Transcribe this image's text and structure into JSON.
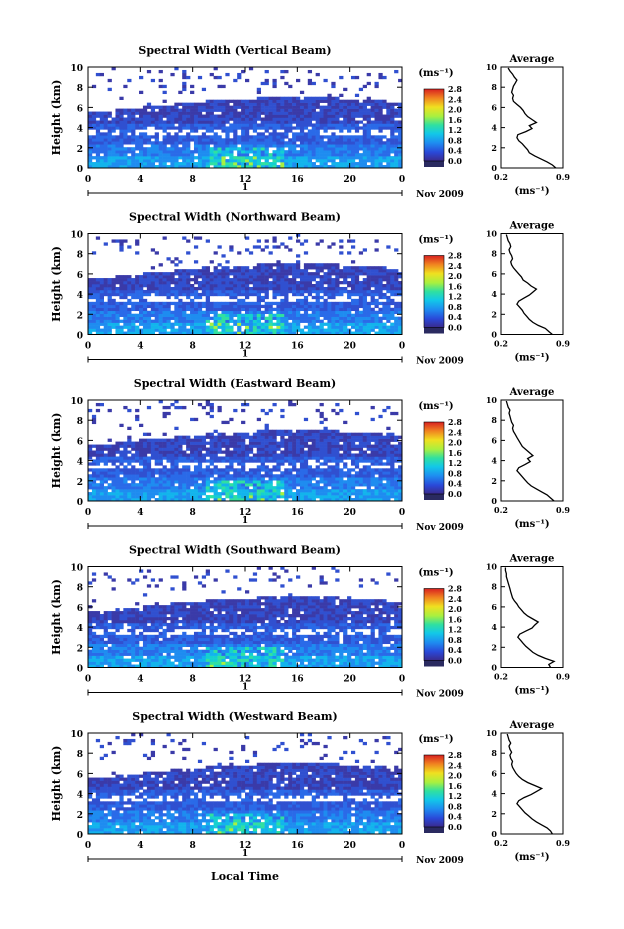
{
  "figure": {
    "month_label": "Nov 2009",
    "day_label": "1",
    "xlabel": "Local Time",
    "ylabel": "Height (km)",
    "colorbar_unit": "(ms⁻¹)",
    "avg_title": "Average",
    "avg_xlabel": "(ms⁻¹)"
  },
  "chart_data": [
    {
      "type": "heatmap",
      "title": "Spectral Width (Vertical Beam)",
      "xlabel": "",
      "ylabel": "Height (km)",
      "xlim": [
        0,
        24
      ],
      "ylim": [
        0,
        10
      ],
      "xticks": [
        "0",
        "4",
        "8",
        "12",
        "16",
        "20",
        "0"
      ],
      "yticks": [
        "0",
        "2",
        "4",
        "6",
        "8",
        "10"
      ],
      "colorbar": {
        "unit": "(ms⁻¹)",
        "min": 0.0,
        "max": 2.8,
        "ticks": [
          "0.0",
          "0.4",
          "0.8",
          "1.2",
          "1.6",
          "2.0",
          "2.4",
          "2.8"
        ]
      },
      "profile": {
        "title": "Average",
        "xlabel": "(ms⁻¹)",
        "xlim": [
          0.2,
          0.9
        ],
        "xticks": [
          "0.2",
          "0.9"
        ],
        "yticks": [
          "0",
          "2",
          "4",
          "6",
          "8",
          "10"
        ],
        "height_km": [
          0.0,
          0.3,
          0.6,
          0.9,
          1.2,
          1.5,
          1.8,
          2.1,
          2.4,
          2.7,
          3.0,
          3.3,
          3.6,
          3.9,
          4.2,
          4.5,
          4.8,
          5.1,
          5.4,
          5.7,
          6.0,
          6.3,
          6.6,
          6.9,
          7.2,
          7.5,
          7.8,
          8.1,
          8.4,
          8.7,
          9.0,
          9.3,
          9.6,
          9.9
        ],
        "width_ms": [
          0.82,
          0.78,
          0.72,
          0.65,
          0.58,
          0.52,
          0.5,
          0.47,
          0.44,
          0.4,
          0.38,
          0.39,
          0.48,
          0.55,
          0.52,
          0.6,
          0.55,
          0.5,
          0.47,
          0.45,
          0.42,
          0.38,
          0.34,
          0.33,
          0.34,
          0.32,
          0.33,
          0.34,
          0.36,
          0.38,
          0.35,
          0.33,
          0.3,
          0.28
        ]
      }
    },
    {
      "type": "heatmap",
      "title": "Spectral Width (Northward Beam)",
      "xlabel": "",
      "ylabel": "Height (km)",
      "xlim": [
        0,
        24
      ],
      "ylim": [
        0,
        10
      ],
      "xticks": [
        "0",
        "4",
        "8",
        "12",
        "16",
        "20",
        "0"
      ],
      "yticks": [
        "0",
        "2",
        "4",
        "6",
        "8",
        "10"
      ],
      "colorbar": {
        "unit": "(ms⁻¹)",
        "min": 0.0,
        "max": 2.8,
        "ticks": [
          "0.0",
          "0.4",
          "0.8",
          "1.2",
          "1.6",
          "2.0",
          "2.4",
          "2.8"
        ]
      },
      "profile": {
        "title": "Average",
        "xlabel": "(ms⁻¹)",
        "xlim": [
          0.2,
          0.9
        ],
        "xticks": [
          "0.2",
          "0.9"
        ],
        "yticks": [
          "0",
          "2",
          "4",
          "6",
          "8",
          "10"
        ],
        "height_km": [
          0.0,
          0.3,
          0.6,
          0.9,
          1.2,
          1.5,
          1.8,
          2.1,
          2.4,
          2.7,
          3.0,
          3.3,
          3.6,
          3.9,
          4.2,
          4.5,
          4.8,
          5.1,
          5.4,
          5.7,
          6.0,
          6.3,
          6.6,
          6.9,
          7.2,
          7.5,
          7.8,
          8.1,
          8.4,
          8.7,
          9.0,
          9.3,
          9.6,
          9.9
        ],
        "width_ms": [
          0.78,
          0.74,
          0.7,
          0.62,
          0.56,
          0.52,
          0.49,
          0.46,
          0.44,
          0.41,
          0.38,
          0.4,
          0.46,
          0.52,
          0.56,
          0.6,
          0.54,
          0.5,
          0.45,
          0.43,
          0.4,
          0.37,
          0.34,
          0.32,
          0.31,
          0.33,
          0.32,
          0.3,
          0.29,
          0.31,
          0.3,
          0.28,
          0.27,
          0.26
        ]
      }
    },
    {
      "type": "heatmap",
      "title": "Spectral Width (Eastward Beam)",
      "xlabel": "",
      "ylabel": "Height (km)",
      "xlim": [
        0,
        24
      ],
      "ylim": [
        0,
        10
      ],
      "xticks": [
        "0",
        "4",
        "8",
        "12",
        "16",
        "20",
        "0"
      ],
      "yticks": [
        "0",
        "2",
        "4",
        "6",
        "8",
        "10"
      ],
      "colorbar": {
        "unit": "(ms⁻¹)",
        "min": 0.0,
        "max": 2.8,
        "ticks": [
          "0.0",
          "0.4",
          "0.8",
          "1.2",
          "1.6",
          "2.0",
          "2.4",
          "2.8"
        ]
      },
      "profile": {
        "title": "Average",
        "xlabel": "(ms⁻¹)",
        "xlim": [
          0.2,
          0.9
        ],
        "xticks": [
          "0.2",
          "0.9"
        ],
        "yticks": [
          "0",
          "2",
          "4",
          "6",
          "8",
          "10"
        ],
        "height_km": [
          0.0,
          0.3,
          0.6,
          0.9,
          1.2,
          1.5,
          1.8,
          2.1,
          2.4,
          2.7,
          3.0,
          3.3,
          3.6,
          3.9,
          4.2,
          4.5,
          4.8,
          5.1,
          5.4,
          5.7,
          6.0,
          6.3,
          6.6,
          6.9,
          7.2,
          7.5,
          7.8,
          8.1,
          8.4,
          8.7,
          9.0,
          9.3,
          9.6,
          9.9
        ],
        "width_ms": [
          0.8,
          0.76,
          0.72,
          0.66,
          0.6,
          0.54,
          0.5,
          0.47,
          0.44,
          0.41,
          0.38,
          0.4,
          0.47,
          0.53,
          0.5,
          0.56,
          0.52,
          0.48,
          0.44,
          0.42,
          0.4,
          0.38,
          0.36,
          0.34,
          0.33,
          0.34,
          0.32,
          0.31,
          0.3,
          0.29,
          0.3,
          0.28,
          0.27,
          0.26
        ]
      }
    },
    {
      "type": "heatmap",
      "title": "Spectral Width (Southward Beam)",
      "xlabel": "",
      "ylabel": "Height (km)",
      "xlim": [
        0,
        24
      ],
      "ylim": [
        0,
        10
      ],
      "xticks": [
        "0",
        "4",
        "8",
        "12",
        "16",
        "20",
        "0"
      ],
      "yticks": [
        "0",
        "2",
        "4",
        "6",
        "8",
        "10"
      ],
      "colorbar": {
        "unit": "(ms⁻¹)",
        "min": 0.0,
        "max": 2.8,
        "ticks": [
          "0.0",
          "0.4",
          "0.8",
          "1.2",
          "1.6",
          "2.0",
          "2.4",
          "2.8"
        ]
      },
      "profile": {
        "title": "Average",
        "xlabel": "(ms⁻¹)",
        "xlim": [
          0.2,
          0.9
        ],
        "xticks": [
          "0.2",
          "0.9"
        ],
        "yticks": [
          "0",
          "2",
          "4",
          "6",
          "8",
          "10"
        ],
        "height_km": [
          0.0,
          0.3,
          0.6,
          0.9,
          1.2,
          1.5,
          1.8,
          2.1,
          2.4,
          2.7,
          3.0,
          3.3,
          3.6,
          3.9,
          4.2,
          4.5,
          4.8,
          5.1,
          5.4,
          5.7,
          6.0,
          6.3,
          6.6,
          6.9,
          7.2,
          7.5,
          7.8,
          8.1,
          8.4,
          8.7,
          9.0,
          9.3,
          9.6,
          9.9
        ],
        "width_ms": [
          0.76,
          0.74,
          0.8,
          0.7,
          0.62,
          0.56,
          0.52,
          0.48,
          0.45,
          0.42,
          0.39,
          0.41,
          0.48,
          0.55,
          0.58,
          0.62,
          0.56,
          0.5,
          0.46,
          0.43,
          0.4,
          0.38,
          0.35,
          0.33,
          0.32,
          0.31,
          0.3,
          0.29,
          0.28,
          0.27,
          0.26,
          0.26,
          0.25,
          0.25
        ]
      }
    },
    {
      "type": "heatmap",
      "title": "Spectral Width (Westward Beam)",
      "xlabel": "Local Time",
      "ylabel": "Height (km)",
      "xlim": [
        0,
        24
      ],
      "ylim": [
        0,
        10
      ],
      "xticks": [
        "0",
        "4",
        "8",
        "12",
        "16",
        "20",
        "0"
      ],
      "yticks": [
        "0",
        "2",
        "4",
        "6",
        "8",
        "10"
      ],
      "colorbar": {
        "unit": "(ms⁻¹)",
        "min": 0.0,
        "max": 2.8,
        "ticks": [
          "0.0",
          "0.4",
          "0.8",
          "1.2",
          "1.6",
          "2.0",
          "2.4",
          "2.8"
        ]
      },
      "profile": {
        "title": "Average",
        "xlabel": "(ms⁻¹)",
        "xlim": [
          0.2,
          0.9
        ],
        "xticks": [
          "0.2",
          "0.9"
        ],
        "yticks": [
          "0",
          "2",
          "4",
          "6",
          "8",
          "10"
        ],
        "height_km": [
          0.0,
          0.3,
          0.6,
          0.9,
          1.2,
          1.5,
          1.8,
          2.1,
          2.4,
          2.7,
          3.0,
          3.3,
          3.6,
          3.9,
          4.2,
          4.5,
          4.8,
          5.1,
          5.4,
          5.7,
          6.0,
          6.3,
          6.6,
          6.9,
          7.2,
          7.5,
          7.8,
          8.1,
          8.4,
          8.7,
          9.0,
          9.3,
          9.6,
          9.9
        ],
        "width_ms": [
          0.78,
          0.76,
          0.72,
          0.66,
          0.6,
          0.55,
          0.51,
          0.47,
          0.44,
          0.41,
          0.38,
          0.4,
          0.46,
          0.54,
          0.6,
          0.66,
          0.58,
          0.5,
          0.44,
          0.4,
          0.37,
          0.35,
          0.33,
          0.32,
          0.33,
          0.31,
          0.3,
          0.32,
          0.3,
          0.29,
          0.31,
          0.29,
          0.28,
          0.27
        ]
      }
    }
  ]
}
